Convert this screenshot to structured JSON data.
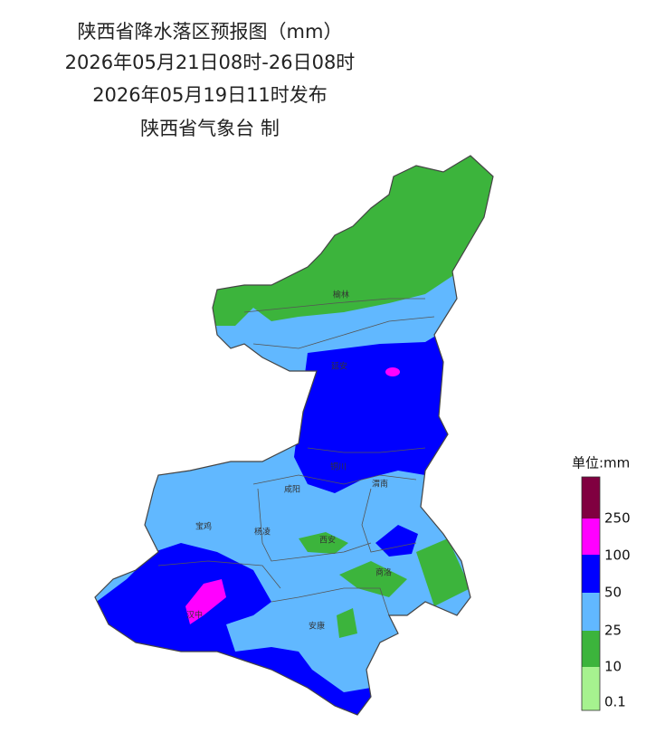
{
  "title": {
    "lines": [
      "陕西省降水落区预报图（mm）",
      "2026年05月21日08时-26日08时",
      "2026年05月19日11时发布",
      "陕西省气象台 制"
    ]
  },
  "map": {
    "cities": [
      "榆林",
      "延安",
      "铜川",
      "渭南",
      "咸阳",
      "宝鸡",
      "杨凌",
      "西安",
      "商洛",
      "汉中",
      "安康"
    ]
  },
  "legend": {
    "title": "单位:mm",
    "labels": [
      "250",
      "100",
      "50",
      "25",
      "10",
      "0.1"
    ]
  }
}
